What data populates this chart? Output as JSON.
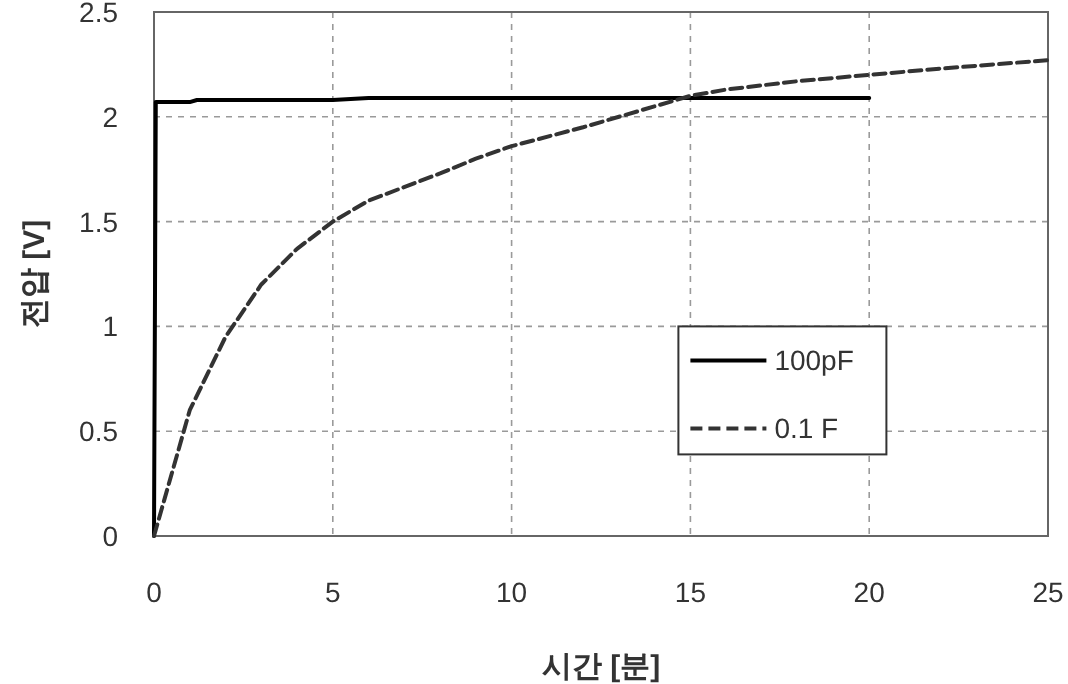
{
  "chart_data": {
    "type": "line",
    "xlabel": "시간 [분]",
    "ylabel": "전압 [V]",
    "xlim": [
      0,
      25
    ],
    "xticks": [
      0,
      5,
      10,
      15,
      20,
      25
    ],
    "ylim": [
      0,
      2.5
    ],
    "yticks": [
      0,
      0.5,
      1,
      1.5,
      2,
      2.5
    ],
    "grid": true,
    "legend": "right",
    "marker": "none",
    "series": [
      {
        "name": "100pF",
        "color": "#000000",
        "line_style": "solid",
        "x": [
          0,
          0.05,
          1,
          1.2,
          5,
          6,
          20
        ],
        "values": [
          0,
          2.07,
          2.07,
          2.08,
          2.08,
          2.09,
          2.09
        ]
      },
      {
        "name": "0.1 F",
        "color": "#333333",
        "line_style": "dashed",
        "x": [
          0,
          1,
          2,
          3,
          4,
          5,
          6,
          8,
          9,
          10,
          12,
          14,
          15,
          16,
          18,
          20,
          22,
          25
        ],
        "values": [
          0,
          0.6,
          0.95,
          1.2,
          1.37,
          1.5,
          1.6,
          1.73,
          1.8,
          1.86,
          1.95,
          2.05,
          2.1,
          2.13,
          2.17,
          2.2,
          2.23,
          2.27
        ]
      }
    ]
  }
}
